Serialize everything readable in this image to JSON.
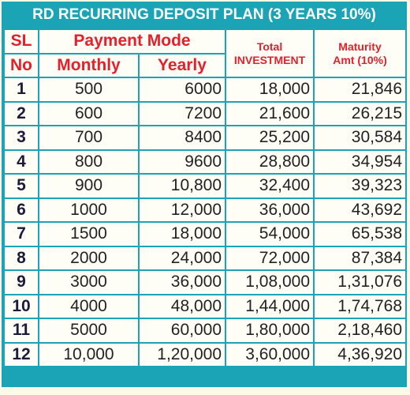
{
  "title": "RD RECURRING DEPOSIT PLAN (3 YEARS 10%)",
  "header": {
    "sl_line1": "SL",
    "sl_line2": "No",
    "payment_mode": "Payment Mode",
    "monthly": "Monthly",
    "yearly": "Yearly",
    "total": "Total",
    "investment": "INVESTMENT",
    "maturity": "Maturity",
    "maturity_sub": "Amt (10%)"
  },
  "rows": [
    [
      "1",
      "500",
      "6000",
      "18,000",
      "21,846"
    ],
    [
      "2",
      "600",
      "7200",
      "21,600",
      "26,215"
    ],
    [
      "3",
      "700",
      "8400",
      "25,200",
      "30,584"
    ],
    [
      "4",
      "800",
      "9600",
      "28,800",
      "34,954"
    ],
    [
      "5",
      "900",
      "10,800",
      "32,400",
      "39,323"
    ],
    [
      "6",
      "1000",
      "12,000",
      "36,000",
      "43,692"
    ],
    [
      "7",
      "1500",
      "18,000",
      "54,000",
      "65,538"
    ],
    [
      "8",
      "2000",
      "24,000",
      "72,000",
      "87,384"
    ],
    [
      "9",
      "3000",
      "36,000",
      "1,08,000",
      "1,31,076"
    ],
    [
      "10",
      "4000",
      "48,000",
      "1,44,000",
      "1,74,768"
    ],
    [
      "11",
      "5000",
      "60,000",
      "1,80,000",
      "2,18,460"
    ],
    [
      "12",
      "10,000",
      "1,20,000",
      "3,60,000",
      "4,36,920"
    ]
  ]
}
